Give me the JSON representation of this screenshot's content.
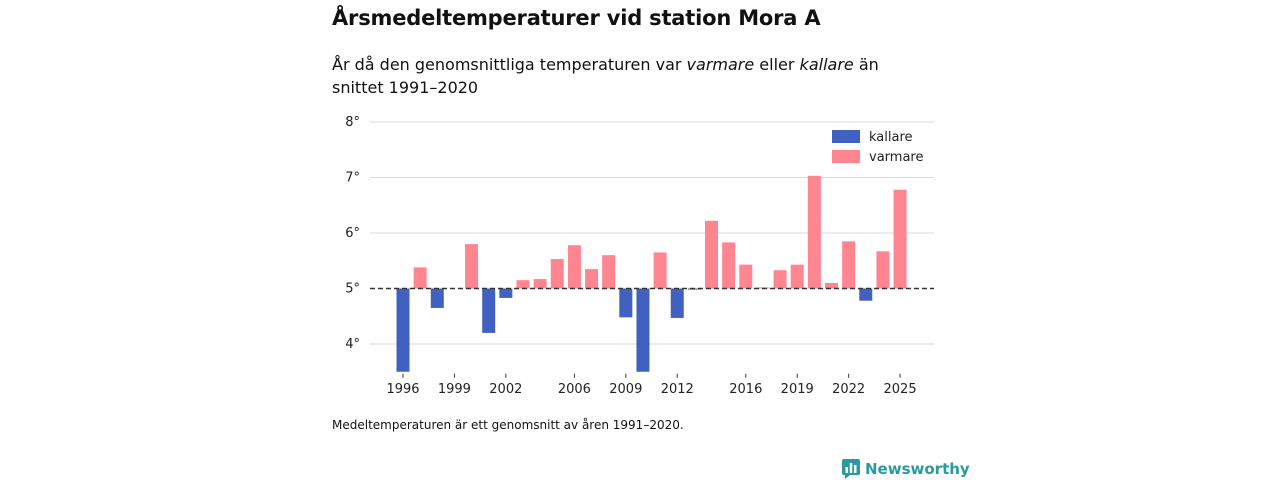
{
  "header": {
    "title": "Årsmedeltemperaturer vid station Mora A",
    "subtitle_part1": "År då den genomsnittliga temperaturen var ",
    "subtitle_em1": "varmare",
    "subtitle_part2": " eller ",
    "subtitle_em2": "kallare",
    "subtitle_part3": " än snittet 1991–2020"
  },
  "footnote": "Medeltemperaturen är ett genomsnitt av åren 1991–2020.",
  "brand": {
    "name": "Newsworthy",
    "icon": "newsworthy-logo-icon"
  },
  "colors": {
    "warmer": "#ff8591",
    "colder": "#4061bf",
    "grid": "#d9d9d9",
    "baseline": "#333333"
  },
  "chart_data": {
    "type": "bar",
    "title": "Årsmedeltemperaturer vid station Mora A",
    "baseline": 5.0,
    "ylim": [
      3.5,
      8
    ],
    "y_ticks": [
      4,
      5,
      6,
      7,
      8
    ],
    "y_tick_labels": [
      "4°",
      "5°",
      "6°",
      "7°",
      "8°"
    ],
    "x_ticks": [
      1996,
      1999,
      2002,
      2006,
      2009,
      2012,
      2016,
      2019,
      2022,
      2025
    ],
    "x_tick_labels": [
      "1996",
      "1999",
      "2002",
      "2006",
      "2009",
      "2012",
      "2016",
      "2019",
      "2022",
      "2025"
    ],
    "legend": {
      "position": "top-right",
      "entries": [
        {
          "label": "kallare",
          "color": "#4061bf"
        },
        {
          "label": "varmare",
          "color": "#ff8591"
        }
      ]
    },
    "years": [
      1996,
      1997,
      1998,
      1999,
      2000,
      2001,
      2002,
      2003,
      2004,
      2005,
      2006,
      2007,
      2008,
      2009,
      2010,
      2011,
      2012,
      2013,
      2014,
      2015,
      2016,
      2017,
      2018,
      2019,
      2020,
      2021,
      2022,
      2023,
      2024,
      2025
    ],
    "values": [
      3.5,
      5.38,
      4.65,
      5.0,
      5.8,
      4.2,
      4.83,
      5.15,
      5.17,
      5.53,
      5.78,
      5.35,
      5.6,
      4.48,
      3.5,
      5.65,
      4.47,
      4.98,
      6.22,
      5.83,
      5.43,
      5.02,
      5.33,
      5.43,
      7.03,
      5.1,
      5.85,
      4.78,
      5.67,
      6.78
    ]
  }
}
